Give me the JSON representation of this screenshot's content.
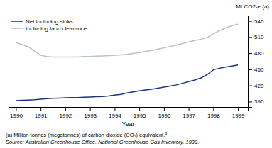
{
  "chart_data": {
    "type": "line",
    "x": [
      1990,
      1990.25,
      1990.5,
      1990.75,
      1991,
      1991.25,
      1991.5,
      1991.75,
      1992,
      1992.25,
      1992.5,
      1992.75,
      1993,
      1993.25,
      1993.5,
      1993.75,
      1994,
      1994.25,
      1994.5,
      1994.75,
      1995,
      1995.25,
      1995.5,
      1995.75,
      1996,
      1996.25,
      1996.5,
      1996.75,
      1997,
      1997.25,
      1997.5,
      1997.75,
      1998,
      1998.25,
      1998.5,
      1998.75,
      1999
    ],
    "series": [
      {
        "name": "Net including sinks",
        "color": "#1a3580",
        "values": [
          392,
          392.5,
          393,
          393.5,
          394.5,
          395.5,
          396,
          396.5,
          397,
          397.3,
          397.5,
          398,
          398.5,
          399,
          399.5,
          400.5,
          402,
          403.5,
          406,
          408,
          410,
          411.5,
          413,
          415,
          417,
          419,
          421,
          424,
          427,
          430,
          434,
          440,
          449,
          452,
          454,
          456,
          458
        ]
      },
      {
        "name": "Including land clearance",
        "color": "#b8bfcf",
        "values": [
          500,
          496,
          492,
          484,
          476,
          474,
          473,
          473,
          473,
          473,
          473,
          474,
          474,
          474.5,
          475,
          475.5,
          476,
          477,
          478,
          479.5,
          481,
          483,
          485,
          487.5,
          490,
          492.5,
          495,
          498,
          501,
          503.5,
          506,
          509,
          516,
          522,
          527,
          531,
          534
        ]
      }
    ],
    "xlabel": "Year",
    "ylabel": "Mt CO2-e (a)",
    "xlim": [
      1989.7,
      1999.4
    ],
    "xticks": [
      1990,
      1991,
      1992,
      1993,
      1994,
      1995,
      1996,
      1997,
      1998,
      1999
    ],
    "ylim": [
      380,
      550
    ],
    "yticks": [
      390,
      420,
      450,
      480,
      510,
      540
    ],
    "legend": "upper left",
    "grid": false,
    "annotations": [
      "(a) Million tonnes (megatonnes) of carbon dioxide (CO₂) equivalent.ª",
      "Source: Australian Greenhouse Office, National Greenhouse Gas Inventory, 1999."
    ]
  }
}
